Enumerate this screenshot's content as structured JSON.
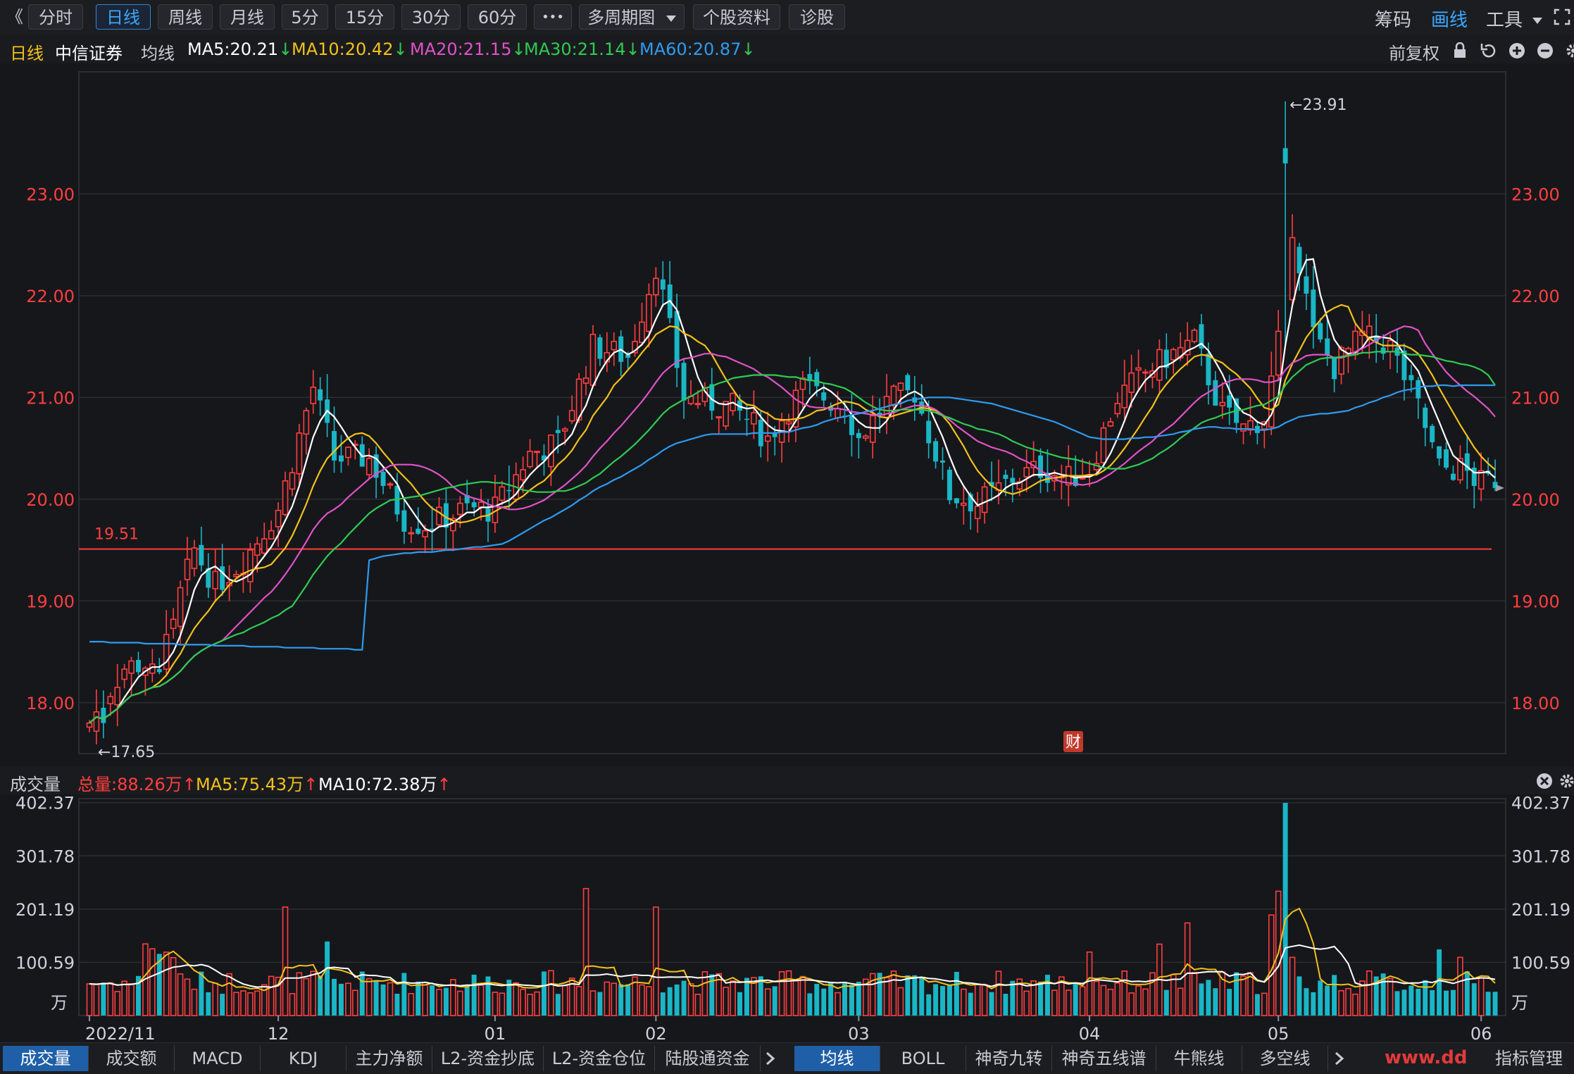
{
  "toolbar": {
    "back_glyph": "《",
    "period_buttons": [
      "分时",
      "日线",
      "周线",
      "月线",
      "5分",
      "15分",
      "30分",
      "60分"
    ],
    "active_period": "日线",
    "more_glyph": "•••",
    "multi_period": "多周期图",
    "stock_info": "个股资料",
    "diagnose": "诊股",
    "right_chips": "筹码",
    "right_draw": "画线",
    "right_tools": "工具"
  },
  "price_header": {
    "period": "日线",
    "stock_name": "中信证券",
    "ma_label": "均线",
    "ma5": "MA5:20.21",
    "ma10": "MA10:20.42",
    "ma20": "MA20:21.15",
    "ma30": "MA30:21.14",
    "ma60": "MA60:20.87",
    "fuquan": "前复权"
  },
  "volume_header": {
    "label": "成交量",
    "total": "总量:88.26万",
    "ma5": "MA5:75.43万",
    "ma10": "MA10:72.38万"
  },
  "colors": {
    "up": "#ff3f3f",
    "down": "#1ab6c6",
    "ma5": "#ffffff",
    "ma10": "#f2c11a",
    "ma20": "#e052c8",
    "ma30": "#2fcb52",
    "ma60": "#2f9bef",
    "support": "#ff3f3f",
    "grid": "#2c2e34",
    "axis_text_price": "#ff3f3f",
    "axis_text_vol": "#cfd3dc"
  },
  "chart_data": [
    {
      "type": "candlestick",
      "title": "",
      "ylim": [
        17.5,
        24.2
      ],
      "yticks": [
        "23.00",
        "22.00",
        "21.00",
        "20.00",
        "19.00",
        "18.00"
      ],
      "ytick_values": [
        23,
        22,
        21,
        20,
        19,
        18
      ],
      "high_annotation": "23.91",
      "low_annotation": "17.65",
      "support_line": {
        "value": 19.51,
        "label": "19.51"
      },
      "event_marker": "财",
      "x": [],
      "open": [],
      "high": [],
      "low": [],
      "close": [],
      "series": [
        {
          "name": "MA5",
          "values": []
        },
        {
          "name": "MA10",
          "values": []
        },
        {
          "name": "MA20",
          "values": []
        },
        {
          "name": "MA30",
          "values": []
        },
        {
          "name": "MA60",
          "values": []
        }
      ]
    },
    {
      "type": "bar",
      "title": "",
      "ylim": [
        0,
        410
      ],
      "yticks": [
        "402.37",
        "301.78",
        "201.19",
        "100.59"
      ],
      "ytick_values": [
        402.37,
        301.78,
        201.19,
        100.59
      ],
      "unit_label": "万",
      "values": [],
      "up": [],
      "series": [
        {
          "name": "MA5",
          "values": []
        },
        {
          "name": "MA10",
          "values": []
        }
      ]
    }
  ],
  "x_axis": {
    "labels": [
      "2022/11",
      "12",
      "01",
      "02",
      "03",
      "04",
      "05",
      "06"
    ],
    "label_index": [
      0,
      27,
      58,
      81,
      110,
      143,
      170,
      199
    ]
  },
  "bottom_tabs_left": [
    "成交量",
    "成交额",
    "MACD",
    "KDJ",
    "主力净额",
    "L2-资金抄底",
    "L2-资金仓位",
    "陆股通资金"
  ],
  "bottom_tabs_right": [
    "均线",
    "BOLL",
    "神奇九转",
    "神奇五线谱",
    "牛熊线",
    "多空线"
  ],
  "active_left_tab": "成交量",
  "active_right_tab": "均线",
  "right_tab_extra": "指标管理",
  "watermark": "www.dd"
}
